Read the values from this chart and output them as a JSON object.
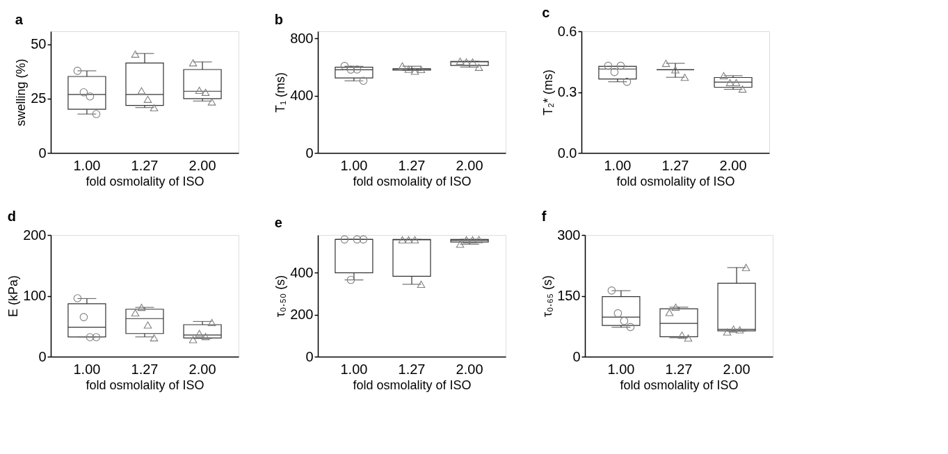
{
  "chart_data": [
    {
      "type": "box",
      "title": "a",
      "ylabel": "swelling (%)",
      "xlabel": "fold osmolality of ISO",
      "categories": [
        "1.00",
        "1.27",
        "2.00"
      ],
      "ylim": [
        0,
        56
      ],
      "yticks": [
        0,
        25,
        50
      ],
      "grid": false,
      "series": [
        {
          "type": "box",
          "color": "#333333",
          "boxes": [
            {
              "low": 17.9,
              "q1": 20.1,
              "median": 26.9,
              "q3": 35.2,
              "high": 37.8
            },
            {
              "low": 20.9,
              "q1": 21.9,
              "median": 26.9,
              "q3": 41.4,
              "high": 45.8
            },
            {
              "low": 23.9,
              "q1": 25.0,
              "median": 28.4,
              "q3": 38.4,
              "high": 41.9
            }
          ]
        },
        {
          "type": "scatter",
          "marker": "circle",
          "color": "#808080",
          "x": [
            "1.00",
            "1.00",
            "1.00",
            "1.00"
          ],
          "values": [
            37.8,
            27.9,
            26.0,
            17.9
          ]
        },
        {
          "type": "scatter",
          "marker": "triangle",
          "color": "#808080",
          "x": [
            "1.27",
            "1.27",
            "1.27",
            "1.27",
            "2.00",
            "2.00",
            "2.00",
            "2.00"
          ],
          "values": [
            45.5,
            28.6,
            24.7,
            20.8,
            41.5,
            28.8,
            27.9,
            23.5
          ]
        }
      ]
    },
    {
      "type": "box",
      "title": "b",
      "ylabel": "T₁ (ms)",
      "xlabel": "fold osmolality of ISO",
      "categories": [
        "1.00",
        "1.27",
        "2.00"
      ],
      "ylim": [
        0,
        850
      ],
      "yticks": [
        0,
        400,
        800
      ],
      "grid": false,
      "series": [
        {
          "type": "box",
          "color": "#333333",
          "boxes": [
            {
              "low": 504,
              "q1": 524,
              "median": 581,
              "q3": 599,
              "high": 606
            },
            {
              "low": 578,
              "q1": 578,
              "median": 584,
              "q3": 588,
              "high": 606
            },
            {
              "low": 600,
              "q1": 611,
              "median": 637,
              "q3": 640,
              "high": 640
            }
          ]
        },
        {
          "type": "scatter",
          "marker": "circle",
          "color": "#808080",
          "x": [
            "1.00",
            "1.00",
            "1.00",
            "1.00"
          ],
          "values": [
            608,
            582,
            583,
            504
          ]
        },
        {
          "type": "scatter",
          "marker": "triangle",
          "color": "#808080",
          "x": [
            "1.27",
            "1.27",
            "1.27",
            "1.27",
            "2.00",
            "2.00",
            "2.00",
            "2.00"
          ],
          "values": [
            608,
            584,
            571,
            583,
            641,
            636,
            636,
            598
          ]
        }
      ]
    },
    {
      "type": "box",
      "title": "c",
      "ylabel": "T₂* (ms)",
      "xlabel": "fold osmolality of ISO",
      "categories": [
        "1.00",
        "1.27",
        "2.00"
      ],
      "ylim": [
        0,
        0.6
      ],
      "yticks": [
        {
          "value": 0,
          "label": "0.0"
        },
        {
          "value": 0.3,
          "label": "0.3"
        },
        {
          "value": 0.6,
          "label": "0.6"
        }
      ],
      "grid": false,
      "series": [
        {
          "type": "box",
          "color": "#333333",
          "boxes": [
            {
              "low": 0.351,
              "q1": 0.365,
              "median": 0.414,
              "q3": 0.427,
              "high": 0.427
            },
            {
              "low": 0.373,
              "q1": 0.41,
              "median": 0.41,
              "q3": 0.41,
              "high": 0.442
            },
            {
              "low": 0.314,
              "q1": 0.324,
              "median": 0.349,
              "q3": 0.372,
              "high": 0.381
            }
          ]
        },
        {
          "type": "scatter",
          "marker": "circle",
          "color": "#808080",
          "x": [
            "1.00",
            "1.00",
            "1.00",
            "1.00"
          ],
          "values": [
            0.43,
            0.399,
            0.43,
            0.351
          ]
        },
        {
          "type": "scatter",
          "marker": "triangle",
          "color": "#808080",
          "x": [
            "1.27",
            "1.27",
            "1.27",
            "2.00",
            "2.00",
            "2.00",
            "2.00"
          ],
          "values": [
            0.442,
            0.41,
            0.373,
            0.381,
            0.347,
            0.347,
            0.315
          ]
        }
      ]
    },
    {
      "type": "box",
      "title": "d",
      "ylabel": "E (kPa)",
      "xlabel": "fold osmolality of ISO",
      "categories": [
        "1.00",
        "1.27",
        "2.00"
      ],
      "ylim": [
        0,
        200
      ],
      "yticks": [
        0,
        100,
        200
      ],
      "grid": false,
      "series": [
        {
          "type": "box",
          "color": "#333333",
          "boxes": [
            {
              "low": 32.5,
              "q1": 32.5,
              "median": 48.4,
              "q3": 87,
              "high": 95.5
            },
            {
              "low": 32.5,
              "q1": 38,
              "median": 62.6,
              "q3": 78,
              "high": 81
            },
            {
              "low": 30,
              "q1": 30.8,
              "median": 35.6,
              "q3": 52.6,
              "high": 57.8
            }
          ]
        },
        {
          "type": "scatter",
          "marker": "circle",
          "color": "#808080",
          "x": [
            "1.00",
            "1.00",
            "1.00",
            "1.00"
          ],
          "values": [
            96,
            65,
            32,
            32
          ]
        },
        {
          "type": "scatter",
          "marker": "triangle",
          "color": "#808080",
          "x": [
            "1.27",
            "1.27",
            "1.27",
            "1.27",
            "2.00",
            "2.00",
            "2.00",
            "2.00"
          ],
          "values": [
            72,
            81,
            52,
            31,
            28,
            38,
            33,
            56
          ]
        }
      ]
    },
    {
      "type": "box",
      "title": "e",
      "ylabel": "τ₀.₅₀ (s)",
      "xlabel": "fold osmolality of ISO",
      "categories": [
        "1.00",
        "1.27",
        "2.00"
      ],
      "ylim": [
        0,
        580
      ],
      "yticks": [
        0,
        200,
        400
      ],
      "grid": false,
      "series": [
        {
          "type": "box",
          "color": "#333333",
          "boxes": [
            {
              "low": 366,
              "q1": 400,
              "median": 559,
              "q3": 559,
              "high": 559
            },
            {
              "low": 345,
              "q1": 383,
              "median": 557,
              "q3": 559,
              "high": 559
            },
            {
              "low": 536,
              "q1": 546,
              "median": 553,
              "q3": 559,
              "high": 559
            }
          ]
        },
        {
          "type": "scatter",
          "marker": "circle",
          "color": "#808080",
          "x": [
            "1.00",
            "1.00",
            "1.00",
            "1.00"
          ],
          "values": [
            559,
            366,
            559,
            559
          ]
        },
        {
          "type": "scatter",
          "marker": "triangle",
          "color": "#808080",
          "x": [
            "1.27",
            "1.27",
            "1.27",
            "1.27",
            "2.00",
            "2.00",
            "2.00",
            "2.00"
          ],
          "values": [
            557,
            557,
            557,
            345,
            536,
            557,
            557,
            558
          ]
        }
      ]
    },
    {
      "type": "box",
      "title": "f",
      "ylabel": "τ₀.₆₅ (s)",
      "xlabel": "fold osmolality of ISO",
      "categories": [
        "1.00",
        "1.27",
        "2.00"
      ],
      "ylim": [
        0,
        300
      ],
      "yticks": [
        0,
        150,
        300
      ],
      "grid": false,
      "series": [
        {
          "type": "box",
          "color": "#333333",
          "boxes": [
            {
              "low": 72.5,
              "q1": 77,
              "median": 97.4,
              "q3": 148,
              "high": 162.7
            },
            {
              "low": 46.6,
              "q1": 49,
              "median": 82,
              "q3": 118,
              "high": 122
            },
            {
              "low": 63.7,
              "q1": 63.7,
              "median": 67.4,
              "q3": 181,
              "high": 219.7
            }
          ]
        },
        {
          "type": "scatter",
          "marker": "circle",
          "color": "#808080",
          "x": [
            "1.00",
            "1.00",
            "1.00",
            "1.00"
          ],
          "values": [
            163,
            107,
            88,
            73
          ]
        },
        {
          "type": "scatter",
          "marker": "triangle",
          "color": "#808080",
          "x": [
            "1.27",
            "1.27",
            "1.27",
            "1.27",
            "2.00",
            "2.00",
            "2.00",
            "2.00"
          ],
          "values": [
            109,
            122,
            53,
            46,
            61,
            68,
            66,
            220
          ]
        }
      ]
    }
  ]
}
